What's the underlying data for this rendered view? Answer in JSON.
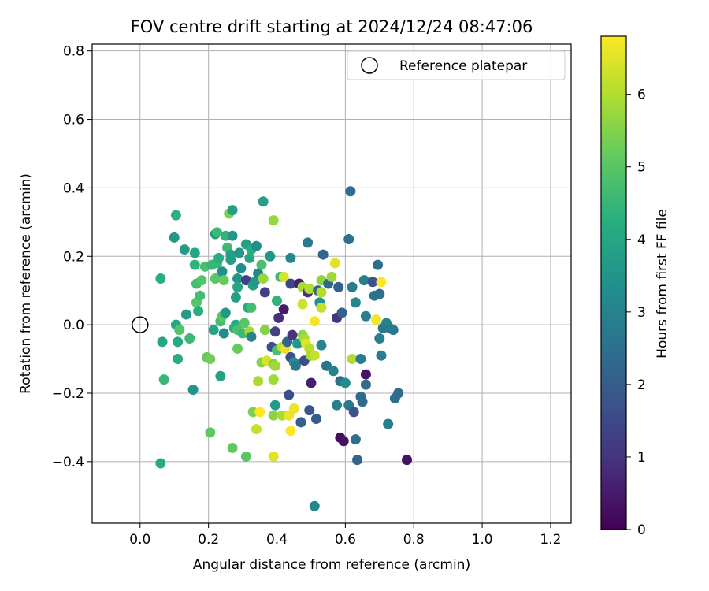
{
  "chart_data": {
    "type": "scatter",
    "title": "FOV centre drift starting at 2024/12/24 08:47:06",
    "xlabel": "Angular distance from reference (arcmin)",
    "ylabel": "Rotation from reference (arcmin)",
    "xlim": [
      -0.14,
      1.26
    ],
    "ylim": [
      -0.58,
      0.82
    ],
    "xticks": [
      0.0,
      0.2,
      0.4,
      0.6,
      0.8,
      1.0,
      1.2
    ],
    "xtick_labels": [
      "0.0",
      "0.2",
      "0.4",
      "0.6",
      "0.8",
      "1.0",
      "1.2"
    ],
    "yticks": [
      -0.4,
      -0.2,
      0.0,
      0.2,
      0.4,
      0.6,
      0.8
    ],
    "ytick_labels": [
      "−0.4",
      "−0.2",
      "0.0",
      "0.2",
      "0.4",
      "0.6",
      "0.8"
    ],
    "grid": true,
    "legend": {
      "position": "top-right",
      "entries": [
        "Reference platepar"
      ]
    },
    "reference_point": {
      "x": 0.0,
      "y": 0.0
    },
    "colorbar": {
      "label": "Hours from first FF file",
      "colormap": "viridis",
      "range": [
        0,
        6.8
      ],
      "ticks": [
        0,
        1,
        2,
        3,
        4,
        5,
        6
      ],
      "tick_labels": [
        "0",
        "1",
        "2",
        "3",
        "4",
        "5",
        "6"
      ]
    },
    "points": [
      {
        "x": 0.06,
        "y": 0.135,
        "h": 4.2
      },
      {
        "x": 0.065,
        "y": -0.05,
        "h": 4.0
      },
      {
        "x": 0.07,
        "y": -0.16,
        "h": 4.5
      },
      {
        "x": 0.06,
        "y": -0.405,
        "h": 4.1
      },
      {
        "x": 0.1,
        "y": 0.255,
        "h": 3.6
      },
      {
        "x": 0.105,
        "y": 0.32,
        "h": 4.3
      },
      {
        "x": 0.105,
        "y": 0.0,
        "h": 4.0
      },
      {
        "x": 0.11,
        "y": -0.05,
        "h": 4.1
      },
      {
        "x": 0.11,
        "y": -0.1,
        "h": 4.2
      },
      {
        "x": 0.115,
        "y": -0.015,
        "h": 4.9
      },
      {
        "x": 0.13,
        "y": 0.22,
        "h": 3.7
      },
      {
        "x": 0.135,
        "y": 0.03,
        "h": 3.7
      },
      {
        "x": 0.145,
        "y": -0.04,
        "h": 4.6
      },
      {
        "x": 0.155,
        "y": -0.19,
        "h": 3.5
      },
      {
        "x": 0.16,
        "y": 0.21,
        "h": 4.0
      },
      {
        "x": 0.16,
        "y": 0.175,
        "h": 4.4
      },
      {
        "x": 0.165,
        "y": 0.12,
        "h": 4.7
      },
      {
        "x": 0.165,
        "y": 0.065,
        "h": 5.0
      },
      {
        "x": 0.17,
        "y": 0.04,
        "h": 4.2
      },
      {
        "x": 0.175,
        "y": 0.085,
        "h": 4.7
      },
      {
        "x": 0.18,
        "y": 0.13,
        "h": 4.9
      },
      {
        "x": 0.19,
        "y": 0.17,
        "h": 4.8
      },
      {
        "x": 0.195,
        "y": -0.095,
        "h": 5.2
      },
      {
        "x": 0.205,
        "y": -0.1,
        "h": 5.3
      },
      {
        "x": 0.205,
        "y": -0.315,
        "h": 5.1
      },
      {
        "x": 0.21,
        "y": 0.175,
        "h": 4.5
      },
      {
        "x": 0.215,
        "y": -0.015,
        "h": 4.0
      },
      {
        "x": 0.22,
        "y": 0.135,
        "h": 5.0
      },
      {
        "x": 0.22,
        "y": 0.265,
        "h": 3.6
      },
      {
        "x": 0.225,
        "y": 0.27,
        "h": 4.6
      },
      {
        "x": 0.225,
        "y": 0.18,
        "h": 4.5
      },
      {
        "x": 0.23,
        "y": 0.195,
        "h": 4.2
      },
      {
        "x": 0.235,
        "y": 0.01,
        "h": 4.7
      },
      {
        "x": 0.235,
        "y": -0.15,
        "h": 3.9
      },
      {
        "x": 0.24,
        "y": 0.155,
        "h": 3.4
      },
      {
        "x": 0.24,
        "y": 0.025,
        "h": 5.0
      },
      {
        "x": 0.245,
        "y": 0.13,
        "h": 5.2
      },
      {
        "x": 0.245,
        "y": -0.025,
        "h": 3.2
      },
      {
        "x": 0.25,
        "y": 0.26,
        "h": 4.4
      },
      {
        "x": 0.25,
        "y": 0.035,
        "h": 3.6
      },
      {
        "x": 0.255,
        "y": 0.225,
        "h": 4.6
      },
      {
        "x": 0.26,
        "y": 0.325,
        "h": 5.4
      },
      {
        "x": 0.265,
        "y": 0.205,
        "h": 3.9
      },
      {
        "x": 0.265,
        "y": 0.19,
        "h": 3.8
      },
      {
        "x": 0.27,
        "y": 0.335,
        "h": 3.8
      },
      {
        "x": 0.27,
        "y": 0.26,
        "h": 3.6
      },
      {
        "x": 0.27,
        "y": -0.36,
        "h": 5.1
      },
      {
        "x": 0.275,
        "y": -0.01,
        "h": 4.2
      },
      {
        "x": 0.28,
        "y": 0.08,
        "h": 3.8
      },
      {
        "x": 0.28,
        "y": 0.0,
        "h": 4.2
      },
      {
        "x": 0.285,
        "y": 0.135,
        "h": 3.5
      },
      {
        "x": 0.285,
        "y": 0.11,
        "h": 4.0
      },
      {
        "x": 0.285,
        "y": -0.015,
        "h": 4.8
      },
      {
        "x": 0.285,
        "y": -0.07,
        "h": 5.2
      },
      {
        "x": 0.29,
        "y": 0.21,
        "h": 3.6
      },
      {
        "x": 0.295,
        "y": 0.165,
        "h": 3.3
      },
      {
        "x": 0.3,
        "y": -0.025,
        "h": 4.6
      },
      {
        "x": 0.305,
        "y": 0.005,
        "h": 5.0
      },
      {
        "x": 0.31,
        "y": 0.235,
        "h": 3.8
      },
      {
        "x": 0.31,
        "y": 0.13,
        "h": 1.3
      },
      {
        "x": 0.31,
        "y": -0.385,
        "h": 5.0
      },
      {
        "x": 0.315,
        "y": 0.05,
        "h": 4.1
      },
      {
        "x": 0.32,
        "y": 0.195,
        "h": 4.0
      },
      {
        "x": 0.32,
        "y": -0.02,
        "h": 5.8
      },
      {
        "x": 0.325,
        "y": -0.035,
        "h": 3.0
      },
      {
        "x": 0.325,
        "y": 0.05,
        "h": 4.7
      },
      {
        "x": 0.325,
        "y": 0.22,
        "h": 4.2
      },
      {
        "x": 0.33,
        "y": 0.115,
        "h": 3.9
      },
      {
        "x": 0.33,
        "y": -0.255,
        "h": 5.4
      },
      {
        "x": 0.335,
        "y": 0.125,
        "h": 3.6
      },
      {
        "x": 0.34,
        "y": -0.305,
        "h": 6.2
      },
      {
        "x": 0.34,
        "y": 0.23,
        "h": 3.3
      },
      {
        "x": 0.345,
        "y": 0.15,
        "h": 3.1
      },
      {
        "x": 0.345,
        "y": -0.165,
        "h": 5.9
      },
      {
        "x": 0.35,
        "y": -0.255,
        "h": 6.8
      },
      {
        "x": 0.355,
        "y": 0.175,
        "h": 4.8
      },
      {
        "x": 0.355,
        "y": -0.11,
        "h": 5.5
      },
      {
        "x": 0.36,
        "y": 0.135,
        "h": 5.7
      },
      {
        "x": 0.36,
        "y": 0.36,
        "h": 3.8
      },
      {
        "x": 0.365,
        "y": -0.015,
        "h": 5.5
      },
      {
        "x": 0.365,
        "y": 0.095,
        "h": 1.3
      },
      {
        "x": 0.37,
        "y": -0.105,
        "h": 6.4
      },
      {
        "x": 0.38,
        "y": 0.2,
        "h": 3.5
      },
      {
        "x": 0.385,
        "y": -0.065,
        "h": 1.6
      },
      {
        "x": 0.39,
        "y": 0.305,
        "h": 5.7
      },
      {
        "x": 0.39,
        "y": -0.115,
        "h": 5.5
      },
      {
        "x": 0.39,
        "y": -0.16,
        "h": 5.8
      },
      {
        "x": 0.39,
        "y": -0.265,
        "h": 5.6
      },
      {
        "x": 0.39,
        "y": -0.385,
        "h": 6.5
      },
      {
        "x": 0.395,
        "y": -0.235,
        "h": 3.7
      },
      {
        "x": 0.395,
        "y": -0.12,
        "h": 5.8
      },
      {
        "x": 0.395,
        "y": -0.02,
        "h": 1.3
      },
      {
        "x": 0.4,
        "y": -0.075,
        "h": 4.8
      },
      {
        "x": 0.4,
        "y": 0.07,
        "h": 4.4
      },
      {
        "x": 0.405,
        "y": 0.02,
        "h": 0.9
      },
      {
        "x": 0.41,
        "y": 0.14,
        "h": 4.6
      },
      {
        "x": 0.415,
        "y": -0.065,
        "h": 6.1
      },
      {
        "x": 0.415,
        "y": -0.265,
        "h": 5.9
      },
      {
        "x": 0.42,
        "y": 0.045,
        "h": 0.5
      },
      {
        "x": 0.42,
        "y": 0.14,
        "h": 6.4
      },
      {
        "x": 0.425,
        "y": -0.07,
        "h": 6.6
      },
      {
        "x": 0.43,
        "y": -0.05,
        "h": 2.2
      },
      {
        "x": 0.435,
        "y": -0.205,
        "h": 1.6
      },
      {
        "x": 0.435,
        "y": -0.265,
        "h": 6.6
      },
      {
        "x": 0.44,
        "y": 0.195,
        "h": 3.1
      },
      {
        "x": 0.44,
        "y": 0.12,
        "h": 1.4
      },
      {
        "x": 0.44,
        "y": -0.095,
        "h": 1.6
      },
      {
        "x": 0.44,
        "y": -0.31,
        "h": 6.8
      },
      {
        "x": 0.445,
        "y": -0.03,
        "h": 1.0
      },
      {
        "x": 0.45,
        "y": -0.11,
        "h": 3.4
      },
      {
        "x": 0.45,
        "y": -0.245,
        "h": 6.6
      },
      {
        "x": 0.455,
        "y": -0.12,
        "h": 2.7
      },
      {
        "x": 0.46,
        "y": -0.055,
        "h": 3.6
      },
      {
        "x": 0.465,
        "y": 0.12,
        "h": 0.6
      },
      {
        "x": 0.47,
        "y": -0.285,
        "h": 2.1
      },
      {
        "x": 0.475,
        "y": 0.06,
        "h": 6.3
      },
      {
        "x": 0.475,
        "y": -0.03,
        "h": 5.6
      },
      {
        "x": 0.475,
        "y": 0.11,
        "h": 5.9
      },
      {
        "x": 0.48,
        "y": -0.105,
        "h": 1.6
      },
      {
        "x": 0.48,
        "y": -0.04,
        "h": 5.9
      },
      {
        "x": 0.485,
        "y": -0.055,
        "h": 6.5
      },
      {
        "x": 0.49,
        "y": 0.095,
        "h": 1.0
      },
      {
        "x": 0.49,
        "y": 0.24,
        "h": 2.7
      },
      {
        "x": 0.495,
        "y": -0.25,
        "h": 1.8
      },
      {
        "x": 0.495,
        "y": 0.105,
        "h": 6.0
      },
      {
        "x": 0.495,
        "y": -0.07,
        "h": 6.1
      },
      {
        "x": 0.5,
        "y": -0.17,
        "h": 0.6
      },
      {
        "x": 0.5,
        "y": -0.09,
        "h": 5.9
      },
      {
        "x": 0.51,
        "y": 0.01,
        "h": 6.7
      },
      {
        "x": 0.51,
        "y": -0.09,
        "h": 6.2
      },
      {
        "x": 0.51,
        "y": -0.53,
        "h": 3.1
      },
      {
        "x": 0.515,
        "y": -0.275,
        "h": 1.9
      },
      {
        "x": 0.52,
        "y": 0.1,
        "h": 2.3
      },
      {
        "x": 0.525,
        "y": 0.065,
        "h": 3.4
      },
      {
        "x": 0.53,
        "y": 0.05,
        "h": 6.2
      },
      {
        "x": 0.53,
        "y": 0.095,
        "h": 6.0
      },
      {
        "x": 0.53,
        "y": -0.06,
        "h": 3.1
      },
      {
        "x": 0.53,
        "y": 0.13,
        "h": 5.6
      },
      {
        "x": 0.535,
        "y": 0.205,
        "h": 2.2
      },
      {
        "x": 0.545,
        "y": -0.12,
        "h": 2.6
      },
      {
        "x": 0.55,
        "y": 0.12,
        "h": 2.3
      },
      {
        "x": 0.56,
        "y": 0.14,
        "h": 5.8
      },
      {
        "x": 0.565,
        "y": -0.135,
        "h": 3.0
      },
      {
        "x": 0.57,
        "y": 0.18,
        "h": 6.5
      },
      {
        "x": 0.575,
        "y": 0.02,
        "h": 1.0
      },
      {
        "x": 0.575,
        "y": -0.235,
        "h": 2.9
      },
      {
        "x": 0.58,
        "y": 0.11,
        "h": 2.1
      },
      {
        "x": 0.585,
        "y": -0.165,
        "h": 2.4
      },
      {
        "x": 0.585,
        "y": -0.33,
        "h": 0.2
      },
      {
        "x": 0.59,
        "y": 0.035,
        "h": 2.1
      },
      {
        "x": 0.595,
        "y": -0.34,
        "h": 0.3
      },
      {
        "x": 0.6,
        "y": -0.17,
        "h": 3.2
      },
      {
        "x": 0.61,
        "y": 0.25,
        "h": 2.5
      },
      {
        "x": 0.61,
        "y": -0.235,
        "h": 2.7
      },
      {
        "x": 0.615,
        "y": 0.39,
        "h": 2.4
      },
      {
        "x": 0.62,
        "y": -0.1,
        "h": 6.0
      },
      {
        "x": 0.62,
        "y": 0.11,
        "h": 2.9
      },
      {
        "x": 0.625,
        "y": -0.255,
        "h": 1.7
      },
      {
        "x": 0.63,
        "y": -0.335,
        "h": 2.5
      },
      {
        "x": 0.63,
        "y": 0.065,
        "h": 3.1
      },
      {
        "x": 0.635,
        "y": -0.395,
        "h": 2.2
      },
      {
        "x": 0.645,
        "y": -0.1,
        "h": 2.8
      },
      {
        "x": 0.645,
        "y": -0.21,
        "h": 2.4
      },
      {
        "x": 0.65,
        "y": -0.225,
        "h": 2.3
      },
      {
        "x": 0.655,
        "y": 0.13,
        "h": 2.9
      },
      {
        "x": 0.66,
        "y": -0.145,
        "h": 0.3
      },
      {
        "x": 0.66,
        "y": -0.175,
        "h": 2.4
      },
      {
        "x": 0.66,
        "y": 0.025,
        "h": 2.9
      },
      {
        "x": 0.68,
        "y": 0.125,
        "h": 1.7
      },
      {
        "x": 0.685,
        "y": 0.085,
        "h": 2.6
      },
      {
        "x": 0.69,
        "y": 0.015,
        "h": 6.7
      },
      {
        "x": 0.695,
        "y": 0.175,
        "h": 2.4
      },
      {
        "x": 0.7,
        "y": 0.09,
        "h": 2.5
      },
      {
        "x": 0.7,
        "y": -0.04,
        "h": 2.9
      },
      {
        "x": 0.705,
        "y": -0.09,
        "h": 2.8
      },
      {
        "x": 0.705,
        "y": 0.125,
        "h": 6.8
      },
      {
        "x": 0.71,
        "y": -0.01,
        "h": 2.7
      },
      {
        "x": 0.72,
        "y": 0.005,
        "h": 3.0
      },
      {
        "x": 0.725,
        "y": -0.29,
        "h": 2.9
      },
      {
        "x": 0.73,
        "y": -0.01,
        "h": 2.8
      },
      {
        "x": 0.74,
        "y": -0.015,
        "h": 2.7
      },
      {
        "x": 0.745,
        "y": -0.215,
        "h": 2.5
      },
      {
        "x": 0.755,
        "y": -0.2,
        "h": 2.4
      },
      {
        "x": 0.78,
        "y": -0.395,
        "h": 0.3
      }
    ]
  }
}
